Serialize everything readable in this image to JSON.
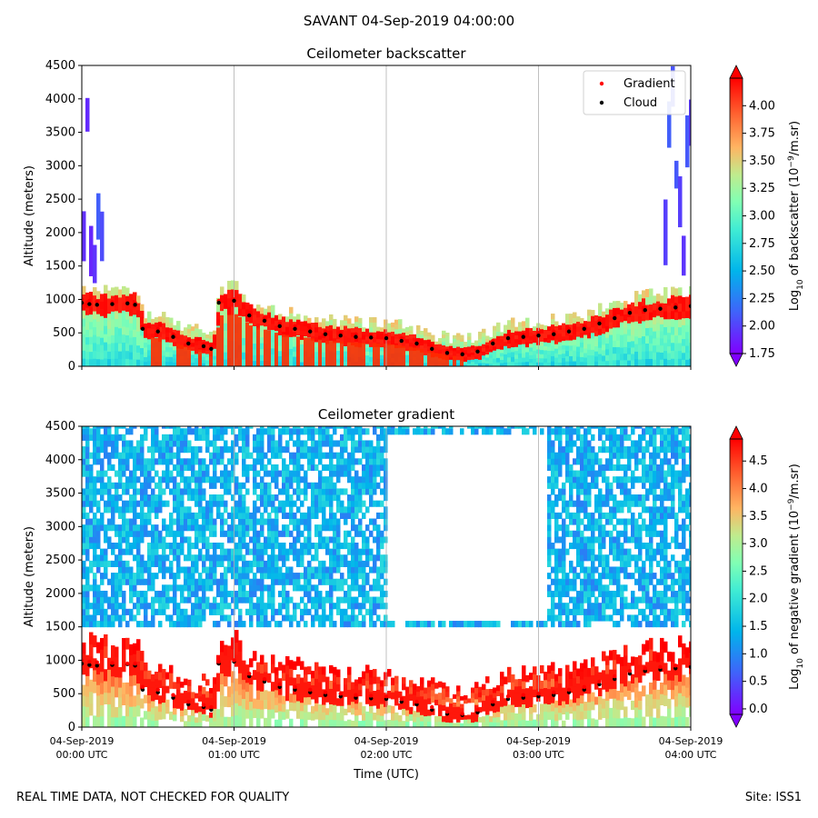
{
  "figure": {
    "suptitle": "SAVANT 04-Sep-2019 04:00:00",
    "footer_left": "REAL TIME DATA, NOT CHECKED FOR QUALITY",
    "footer_right": "Site: ISS1"
  },
  "chart_data": [
    {
      "type": "heatmap",
      "title": "Ceilometer backscatter",
      "ylabel": "Altitude (meters)",
      "xlabel": "",
      "ylim": [
        0,
        4500
      ],
      "yticks": [
        0,
        500,
        1000,
        1500,
        2000,
        2500,
        3000,
        3500,
        4000,
        4500
      ],
      "xlim_hours": [
        0,
        4
      ],
      "xticks_hours": [
        0,
        1,
        2,
        3,
        4
      ],
      "xtick_labels": [],
      "x_vertical_grid": true,
      "legend": {
        "position": "upper right",
        "entries": [
          {
            "label": "Gradient",
            "color": "#ff0000",
            "marker": "dot"
          },
          {
            "label": "Cloud",
            "color": "#000000",
            "marker": "dot"
          }
        ]
      },
      "colorbar": {
        "label_parts": [
          "Log",
          "10",
          " of backscatter (10",
          "−9",
          "/m.sr)"
        ],
        "ticks": [
          "1.75",
          "2.00",
          "2.25",
          "2.50",
          "2.75",
          "3.00",
          "3.25",
          "3.50",
          "3.75",
          "4.00"
        ],
        "range": [
          1.75,
          4.25
        ],
        "colormap": "rainbow",
        "extend": "both"
      },
      "series": [
        {
          "name": "Gradient",
          "color": "#ff0000",
          "x_hours": [
            0.0,
            0.05,
            0.1,
            0.2,
            0.3,
            0.35,
            0.4,
            0.5,
            0.6,
            0.7,
            0.8,
            0.85,
            0.9,
            1.0,
            1.1,
            1.2,
            1.3,
            1.4,
            1.5,
            1.6,
            1.7,
            1.8,
            1.9,
            2.0,
            2.1,
            2.2,
            2.3,
            2.4,
            2.5,
            2.6,
            2.7,
            2.8,
            2.9,
            3.0,
            3.1,
            3.2,
            3.3,
            3.4,
            3.5,
            3.6,
            3.7,
            3.8,
            3.9,
            4.0
          ],
          "y_m": [
            1000,
            980,
            970,
            960,
            950,
            950,
            600,
            560,
            480,
            380,
            330,
            300,
            980,
            1000,
            800,
            720,
            640,
            600,
            560,
            520,
            500,
            480,
            470,
            460,
            420,
            380,
            300,
            230,
            200,
            260,
            380,
            460,
            480,
            500,
            520,
            560,
            600,
            680,
            760,
            840,
            880,
            900,
            920,
            950
          ]
        },
        {
          "name": "Cloud",
          "color": "#000000",
          "x_hours": [
            0.0,
            0.05,
            0.1,
            0.2,
            0.3,
            0.35,
            0.4,
            0.5,
            0.6,
            0.7,
            0.8,
            0.85,
            0.9,
            1.0,
            1.1,
            1.2,
            1.3,
            1.4,
            1.5,
            1.6,
            1.7,
            1.8,
            1.9,
            2.0,
            2.1,
            2.2,
            2.3,
            2.4,
            2.5,
            2.6,
            2.7,
            2.8,
            2.9,
            3.0,
            3.1,
            3.2,
            3.3,
            3.4,
            3.5,
            3.6,
            3.7,
            3.8,
            3.9,
            4.0
          ],
          "y_m": [
            950,
            930,
            920,
            930,
            940,
            920,
            560,
            520,
            440,
            340,
            300,
            260,
            950,
            980,
            760,
            680,
            600,
            560,
            520,
            480,
            460,
            440,
            430,
            420,
            380,
            340,
            260,
            200,
            180,
            220,
            340,
            420,
            440,
            460,
            480,
            520,
            560,
            640,
            720,
            800,
            840,
            860,
            880,
            900
          ]
        }
      ]
    },
    {
      "type": "heatmap",
      "title": "Ceilometer gradient",
      "ylabel": "Altitude (meters)",
      "xlabel": "Time (UTC)",
      "ylim": [
        0,
        4500
      ],
      "yticks": [
        0,
        500,
        1000,
        1500,
        2000,
        2500,
        3000,
        3500,
        4000,
        4500
      ],
      "xlim_hours": [
        0,
        4
      ],
      "xticks_hours": [
        0,
        1,
        2,
        3,
        4
      ],
      "xtick_labels": [
        [
          "04-Sep-2019",
          "00:00 UTC"
        ],
        [
          "04-Sep-2019",
          "01:00 UTC"
        ],
        [
          "04-Sep-2019",
          "02:00 UTC"
        ],
        [
          "04-Sep-2019",
          "03:00 UTC"
        ],
        [
          "04-Sep-2019",
          "04:00 UTC"
        ]
      ],
      "x_vertical_grid": true,
      "colorbar": {
        "label_parts": [
          "Log",
          "10",
          " of negative gradient (10",
          "−9",
          "/m.sr)"
        ],
        "ticks": [
          "0.0",
          "0.5",
          "1.0",
          "1.5",
          "2.0",
          "2.5",
          "3.0",
          "3.5",
          "4.0",
          "4.5"
        ],
        "range": [
          -0.1,
          4.9
        ],
        "colormap": "rainbow",
        "extend": "both"
      },
      "series": [
        {
          "name": "Cloud",
          "color": "#000000",
          "x_hours": [
            0.0,
            0.05,
            0.1,
            0.2,
            0.3,
            0.35,
            0.4,
            0.5,
            0.6,
            0.7,
            0.8,
            0.85,
            0.9,
            1.0,
            1.1,
            1.2,
            1.3,
            1.4,
            1.5,
            1.6,
            1.7,
            1.8,
            1.9,
            2.0,
            2.1,
            2.2,
            2.3,
            2.4,
            2.5,
            2.6,
            2.7,
            2.8,
            2.9,
            3.0,
            3.1,
            3.2,
            3.3,
            3.4,
            3.5,
            3.6,
            3.7,
            3.8,
            3.9,
            4.0
          ],
          "y_m": [
            950,
            930,
            920,
            930,
            940,
            920,
            560,
            520,
            440,
            340,
            300,
            260,
            950,
            980,
            760,
            680,
            600,
            560,
            520,
            480,
            460,
            440,
            430,
            420,
            380,
            340,
            260,
            200,
            180,
            220,
            340,
            420,
            440,
            460,
            480,
            520,
            560,
            640,
            720,
            800,
            840,
            860,
            880,
            900
          ]
        },
        {
          "name": "Gradient",
          "color": "#ff0000",
          "x_hours": [
            0.0,
            0.05,
            0.1,
            0.2,
            0.3,
            0.35,
            0.4,
            0.5,
            0.6,
            0.7,
            0.8,
            0.85,
            0.9,
            1.0,
            1.1,
            1.2,
            1.3,
            1.4,
            1.5,
            1.6,
            1.7,
            1.8,
            1.9,
            2.0,
            2.1,
            2.2,
            2.3,
            2.4,
            2.5,
            2.6,
            2.7,
            2.8,
            2.9,
            3.0,
            3.1,
            3.2,
            3.3,
            3.4,
            3.5,
            3.6,
            3.7,
            3.8,
            3.9,
            4.0
          ],
          "y_m": [
            1000,
            980,
            970,
            960,
            950,
            950,
            600,
            560,
            480,
            380,
            330,
            300,
            980,
            1000,
            800,
            720,
            640,
            600,
            560,
            520,
            500,
            480,
            470,
            460,
            420,
            380,
            300,
            230,
            200,
            260,
            380,
            460,
            480,
            500,
            520,
            560,
            600,
            680,
            760,
            840,
            880,
            900,
            920,
            950
          ]
        }
      ]
    }
  ]
}
